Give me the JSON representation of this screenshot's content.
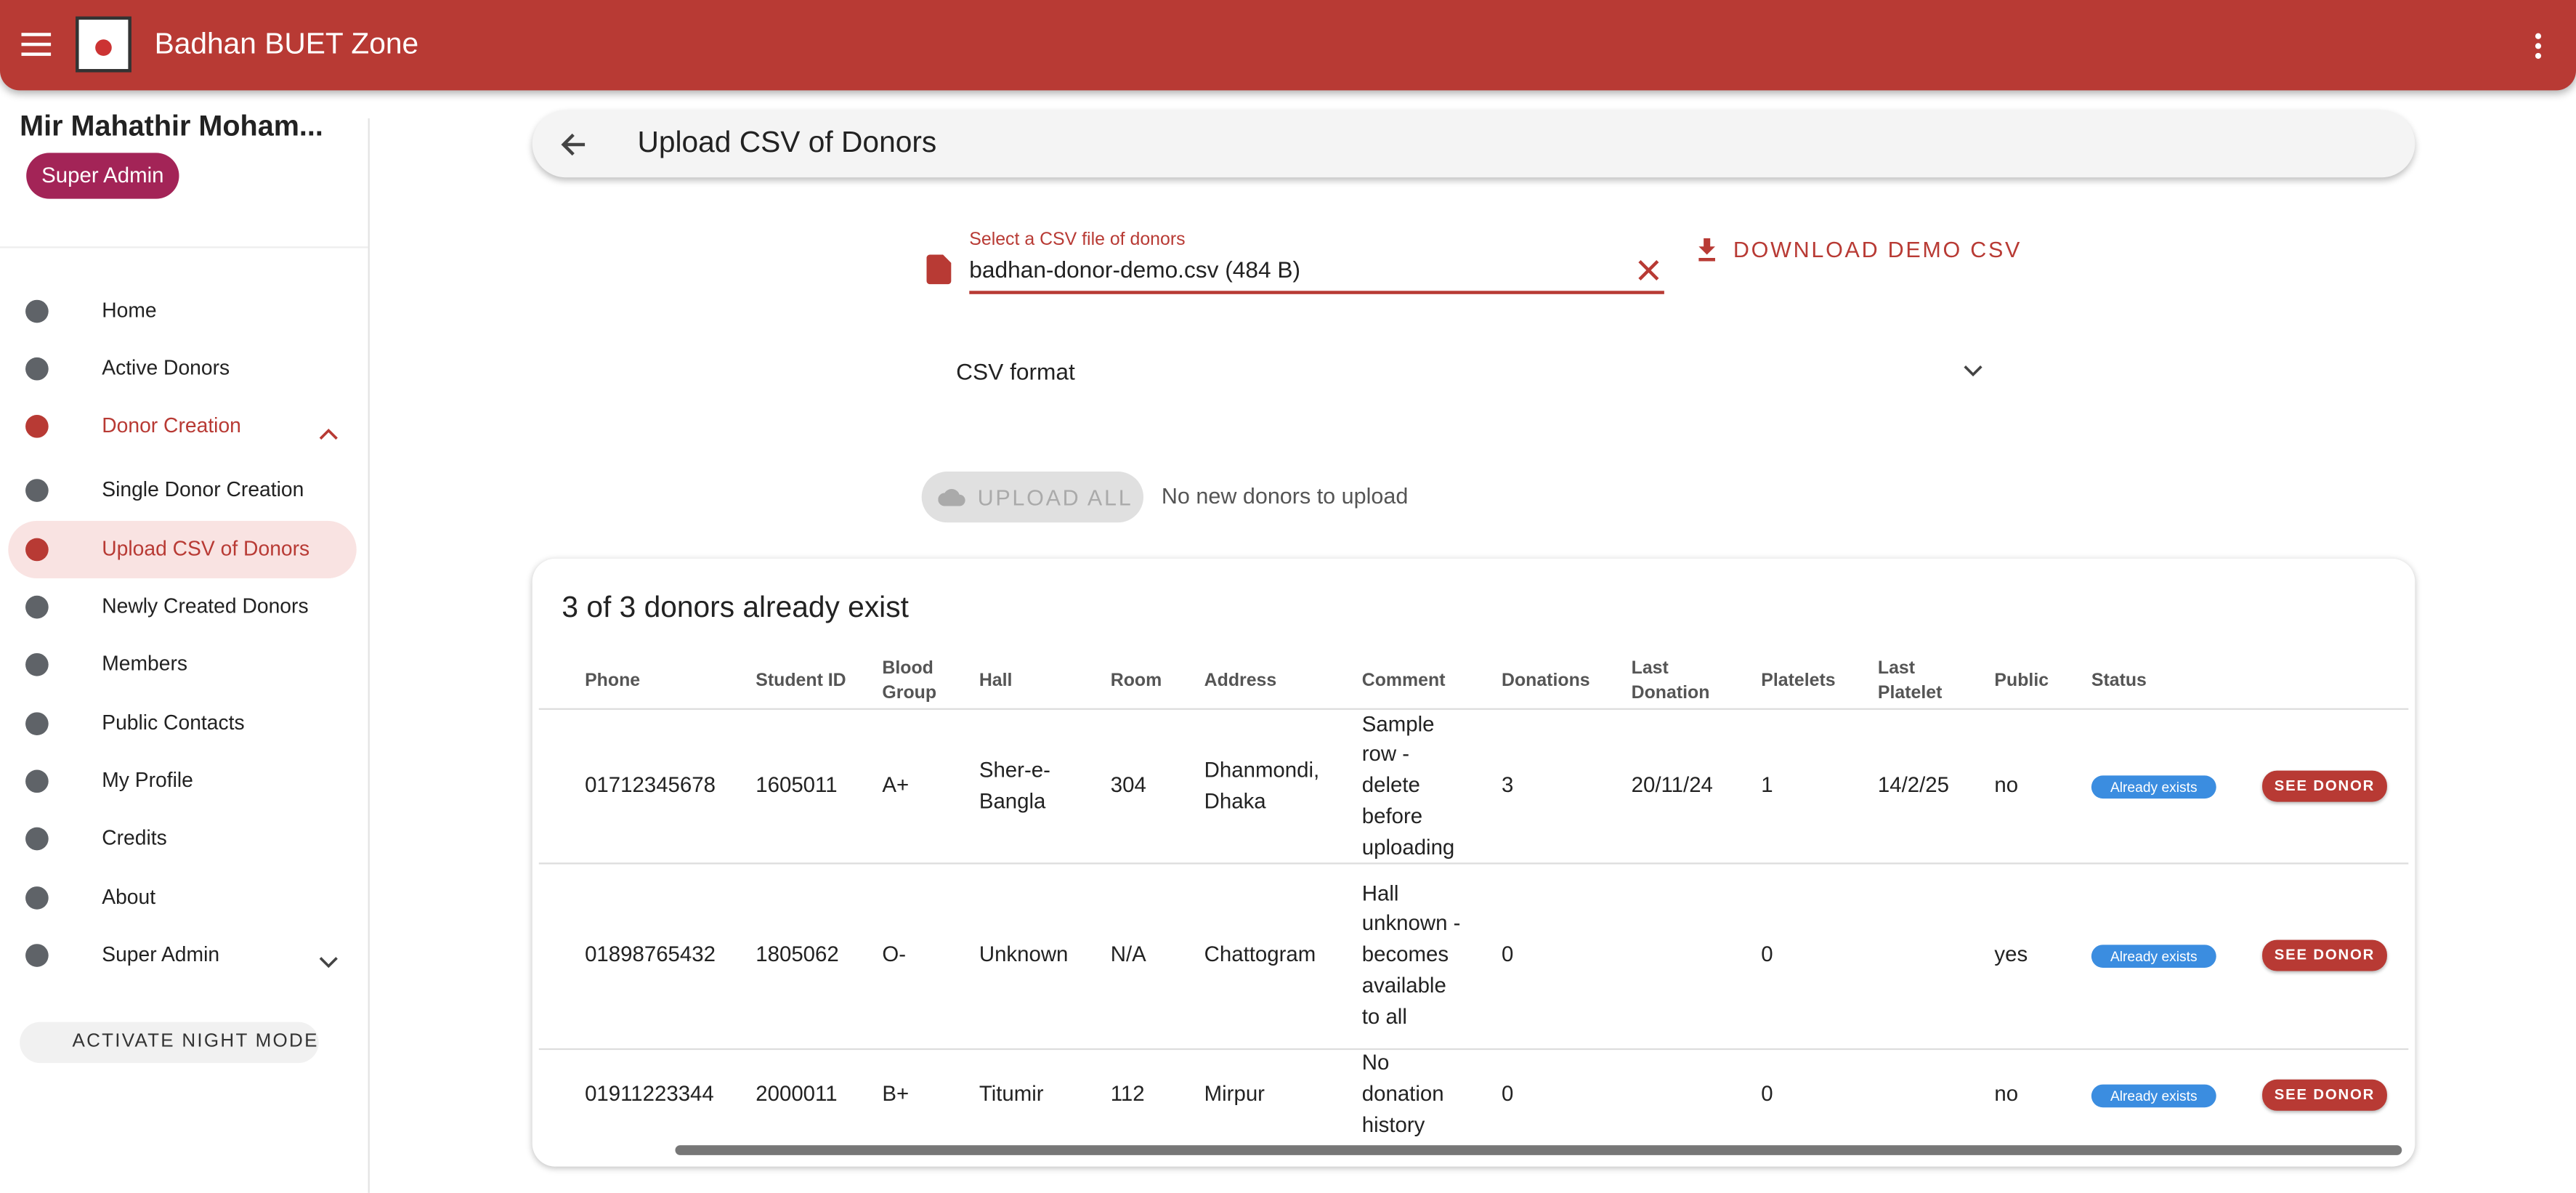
{
  "header": {
    "title": "Badhan BUET Zone"
  },
  "user": {
    "name": "Mir Mahathir Moham...",
    "role": "Super Admin"
  },
  "nav": [
    "Home",
    "Active Donors",
    "Donor Creation",
    "Single Donor Creation",
    "Upload CSV of Donors",
    "Newly Created Donors",
    "Members",
    "Public Contacts",
    "My Profile",
    "Credits",
    "About",
    "Super Admin"
  ],
  "night_mode": "ACTIVATE NIGHT MODE",
  "toolbar": {
    "title": "Upload CSV of Donors"
  },
  "file_field": {
    "label": "Select a CSV file of donors",
    "value": "badhan-donor-demo.csv (484 B)"
  },
  "download_button": "DOWNLOAD DEMO CSV",
  "csv_format": "CSV format",
  "upload_button": "UPLOAD ALL",
  "upload_message": "No new donors to upload",
  "table": {
    "title": "3 of 3 donors already exist",
    "columns": [
      "Phone",
      "Student ID",
      "Blood Group",
      "Hall",
      "Room",
      "Address",
      "Comment",
      "Donations",
      "Last Donation",
      "Platelets",
      "Last Platelet",
      "Public",
      "Status"
    ],
    "rows": [
      [
        "01712345678",
        1605011,
        "A+",
        "Sher-e-Bangla",
        304,
        "Dhanmondi, Dhaka",
        "Sample row - delete before uploading",
        3,
        "20/11/24",
        1,
        "14/2/25",
        "no",
        "Already exists",
        "SEE DONOR"
      ],
      [
        "01898765432",
        1805062,
        "O-",
        "Unknown",
        "N/A",
        "Chattogram",
        "Hall unknown - becomes available to all",
        0,
        null,
        0,
        null,
        "yes",
        "Already exists",
        "SEE DONOR"
      ],
      [
        "01911223344",
        2000011,
        "B+",
        "Titumir",
        112,
        "Mirpur",
        "No donation history",
        0,
        null,
        0,
        null,
        "no",
        "Already exists",
        "SEE DONOR"
      ]
    ]
  }
}
